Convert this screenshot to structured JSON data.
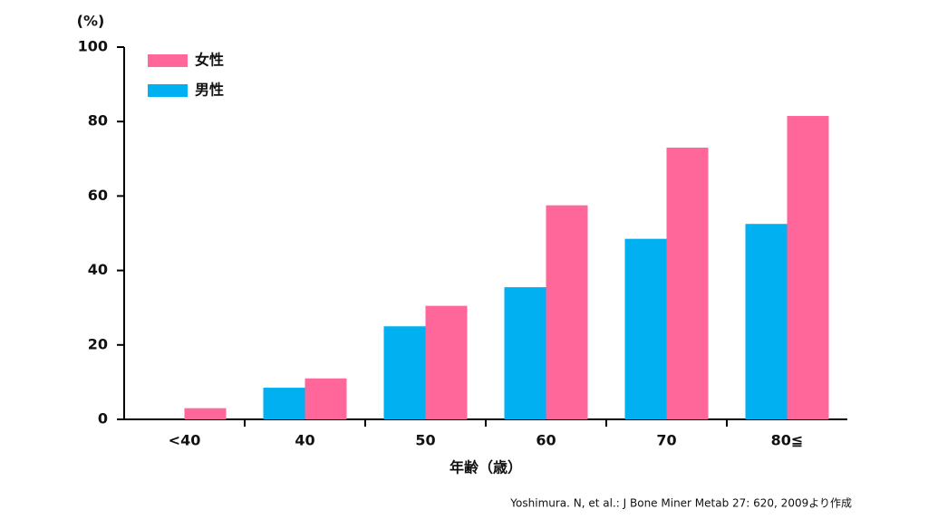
{
  "chart_data": {
    "type": "bar",
    "y_unit": "(%)",
    "x_label": "年齢（歳）",
    "source": "Yoshimura. N, et al.: J Bone Miner Metab 27: 620, 2009より作成",
    "categories": [
      "<40",
      "40",
      "50",
      "60",
      "70",
      "80≦"
    ],
    "series": [
      {
        "name": "男性",
        "color": "#00b0f0",
        "values": [
          0,
          8.5,
          25,
          35.5,
          48.5,
          52.5
        ]
      },
      {
        "name": "女性",
        "color": "#ff6699",
        "values": [
          3,
          11,
          30.5,
          57.5,
          73,
          81.5
        ]
      }
    ],
    "ylim": [
      0,
      100
    ],
    "yticks": [
      0,
      20,
      40,
      60,
      80,
      100
    ],
    "grid": false
  }
}
